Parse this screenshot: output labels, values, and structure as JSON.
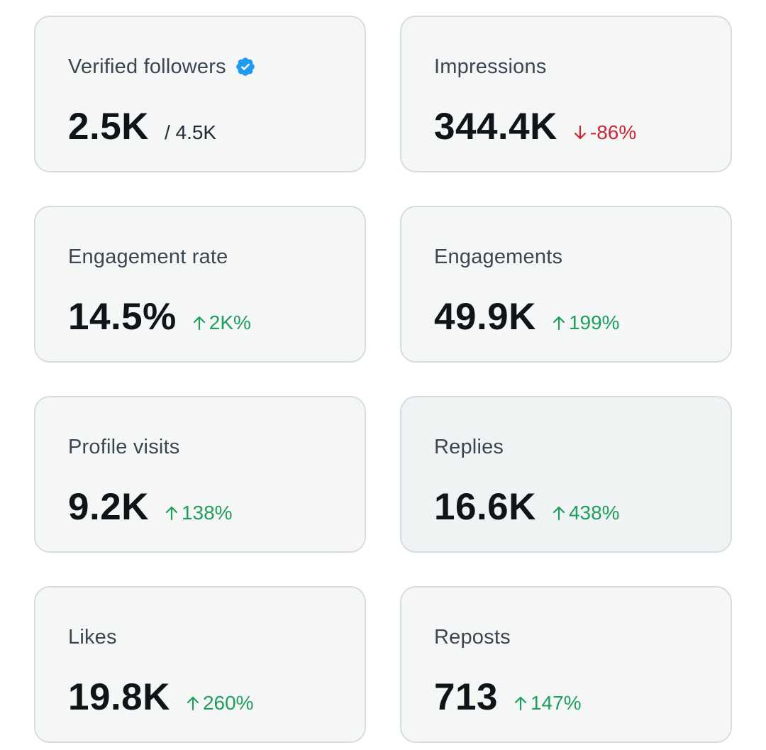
{
  "colors": {
    "up": "#1f9e5d",
    "down": "#d02436",
    "verified": "#1d9bf0",
    "card_bg": "#f5f7f7",
    "card_border": "#d6dde2"
  },
  "cards": [
    {
      "label": "Verified followers",
      "value": "2.5K",
      "sub": "/ 4.5K",
      "icon": "verified-badge-icon"
    },
    {
      "label": "Impressions",
      "value": "344.4K",
      "change": "-86%",
      "direction": "down"
    },
    {
      "label": "Engagement rate",
      "value": "14.5%",
      "change": "2K%",
      "direction": "up"
    },
    {
      "label": "Engagements",
      "value": "49.9K",
      "change": "199%",
      "direction": "up"
    },
    {
      "label": "Profile visits",
      "value": "9.2K",
      "change": "138%",
      "direction": "up"
    },
    {
      "label": "Replies",
      "value": "16.6K",
      "change": "438%",
      "direction": "up"
    },
    {
      "label": "Likes",
      "value": "19.8K",
      "change": "260%",
      "direction": "up"
    },
    {
      "label": "Reposts",
      "value": "713",
      "change": "147%",
      "direction": "up"
    }
  ]
}
